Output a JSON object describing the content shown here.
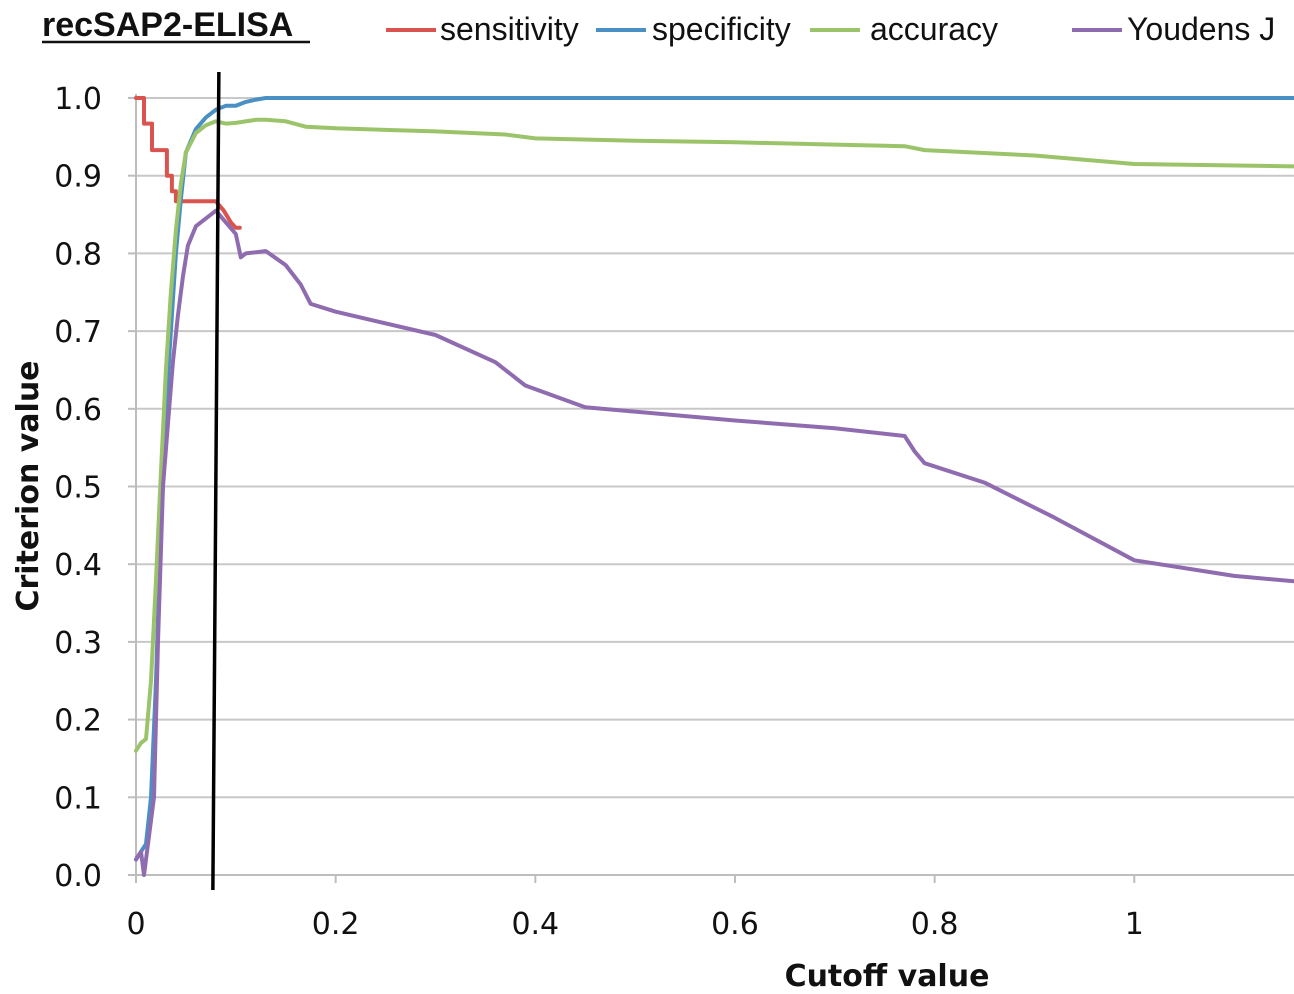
{
  "chart_data": {
    "type": "line",
    "title": "recSAP2-ELISA",
    "xlabel": "Cutoff value",
    "ylabel": "Criterion value",
    "xlim": [
      0,
      1.16
    ],
    "ylim": [
      0,
      1.0
    ],
    "x_ticks": [
      0,
      0.2,
      0.4,
      0.6,
      0.8,
      1
    ],
    "x_tick_labels": [
      "0",
      "0.2",
      "0.4",
      "0.6",
      "0.8",
      "1"
    ],
    "y_ticks": [
      0,
      0.1,
      0.2,
      0.3,
      0.4,
      0.5,
      0.6,
      0.7,
      0.8,
      0.9,
      1.0
    ],
    "y_tick_labels": [
      "0.0",
      "0.1",
      "0.2",
      "0.3",
      "0.4",
      "0.5",
      "0.6",
      "0.7",
      "0.8",
      "0.9",
      "1.0"
    ],
    "grid": "horizontal",
    "legend_position": "top",
    "cutoff_line_x": 0.077,
    "series": [
      {
        "name": "sensitivity",
        "color": "#d9534f",
        "x": [
          0,
          0.008,
          0.008,
          0.016,
          0.016,
          0.022,
          0.022,
          0.031,
          0.031,
          0.036,
          0.036,
          0.04,
          0.04,
          0.05,
          0.06,
          0.07,
          0.08,
          0.088,
          0.095,
          0.1,
          0.104
        ],
        "y": [
          1.0,
          1.0,
          0.967,
          0.967,
          0.933,
          0.933,
          0.933,
          0.933,
          0.9,
          0.9,
          0.88,
          0.88,
          0.867,
          0.867,
          0.867,
          0.867,
          0.867,
          0.855,
          0.84,
          0.833,
          0.833
        ]
      },
      {
        "name": "specificity",
        "color": "#4a90c4",
        "x": [
          0,
          0.005,
          0.01,
          0.015,
          0.02,
          0.025,
          0.03,
          0.035,
          0.04,
          0.045,
          0.05,
          0.06,
          0.07,
          0.08,
          0.09,
          0.1,
          0.11,
          0.12,
          0.13,
          0.15,
          0.2,
          0.4,
          0.6,
          0.8,
          1.0,
          1.16
        ],
        "y": [
          0.02,
          0.03,
          0.04,
          0.1,
          0.25,
          0.45,
          0.6,
          0.7,
          0.8,
          0.87,
          0.93,
          0.96,
          0.975,
          0.985,
          0.99,
          0.99,
          0.995,
          0.998,
          1.0,
          1.0,
          1.0,
          1.0,
          1.0,
          1.0,
          1.0,
          1.0
        ]
      },
      {
        "name": "accuracy",
        "color": "#9bc46a",
        "x": [
          0,
          0.005,
          0.01,
          0.015,
          0.02,
          0.025,
          0.03,
          0.035,
          0.04,
          0.045,
          0.05,
          0.06,
          0.07,
          0.08,
          0.09,
          0.1,
          0.12,
          0.13,
          0.15,
          0.17,
          0.2,
          0.3,
          0.37,
          0.4,
          0.5,
          0.6,
          0.7,
          0.77,
          0.79,
          0.9,
          1.0,
          1.16
        ],
        "y": [
          0.16,
          0.17,
          0.175,
          0.25,
          0.38,
          0.52,
          0.65,
          0.75,
          0.83,
          0.89,
          0.93,
          0.955,
          0.965,
          0.97,
          0.967,
          0.968,
          0.972,
          0.972,
          0.97,
          0.963,
          0.961,
          0.957,
          0.953,
          0.948,
          0.945,
          0.943,
          0.94,
          0.938,
          0.933,
          0.926,
          0.915,
          0.912
        ]
      },
      {
        "name": "Youdens J",
        "color": "#8f6cb0",
        "x": [
          0,
          0.005,
          0.008,
          0.012,
          0.018,
          0.022,
          0.027,
          0.032,
          0.037,
          0.042,
          0.047,
          0.052,
          0.06,
          0.07,
          0.08,
          0.09,
          0.1,
          0.105,
          0.11,
          0.13,
          0.15,
          0.165,
          0.175,
          0.2,
          0.3,
          0.36,
          0.39,
          0.45,
          0.6,
          0.7,
          0.77,
          0.78,
          0.79,
          0.85,
          0.92,
          1.0,
          1.1,
          1.16
        ],
        "y": [
          0.02,
          0.03,
          0.0,
          0.04,
          0.1,
          0.3,
          0.5,
          0.58,
          0.66,
          0.72,
          0.77,
          0.81,
          0.835,
          0.845,
          0.855,
          0.84,
          0.825,
          0.795,
          0.8,
          0.803,
          0.785,
          0.76,
          0.735,
          0.725,
          0.695,
          0.66,
          0.63,
          0.602,
          0.585,
          0.575,
          0.565,
          0.545,
          0.53,
          0.505,
          0.46,
          0.405,
          0.385,
          0.378
        ]
      }
    ]
  }
}
